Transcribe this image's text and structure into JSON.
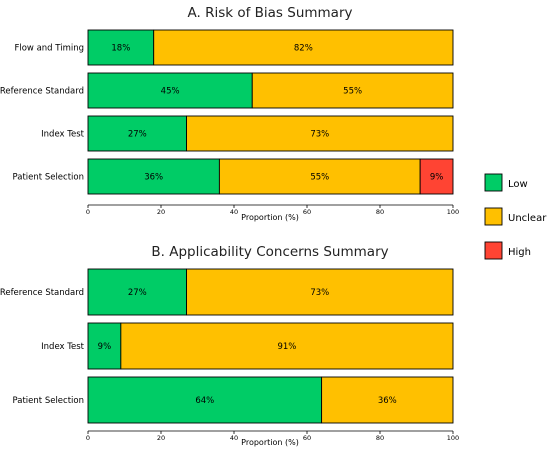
{
  "colors": {
    "Low": "#00cc66",
    "Unclear": "#ffc000",
    "High": "#ff4433"
  },
  "legend": [
    "Low",
    "Unclear",
    "High"
  ],
  "chart_data": [
    {
      "type": "bar",
      "orientation": "horizontal",
      "stacked": true,
      "title": "A. Risk of Bias Summary",
      "xlabel": "Proportion (%)",
      "xlim": [
        0,
        100
      ],
      "xticks": [
        0,
        20,
        40,
        60,
        80,
        100
      ],
      "categories": [
        "Flow and Timing",
        "Reference Standard",
        "Index Test",
        "Patient Selection"
      ],
      "series": [
        {
          "name": "Low",
          "values": [
            18,
            45,
            27,
            36
          ]
        },
        {
          "name": "Unclear",
          "values": [
            82,
            55,
            73,
            55
          ]
        },
        {
          "name": "High",
          "values": [
            0,
            0,
            0,
            9
          ]
        }
      ]
    },
    {
      "type": "bar",
      "orientation": "horizontal",
      "stacked": true,
      "title": "B. Applicability Concerns Summary",
      "xlabel": "Proportion (%)",
      "xlim": [
        0,
        100
      ],
      "xticks": [
        0,
        20,
        40,
        60,
        80,
        100
      ],
      "categories": [
        "Reference Standard",
        "Index Test",
        "Patient Selection"
      ],
      "series": [
        {
          "name": "Low",
          "values": [
            27,
            9,
            64
          ]
        },
        {
          "name": "Unclear",
          "values": [
            73,
            91,
            36
          ]
        },
        {
          "name": "High",
          "values": [
            0,
            0,
            0
          ]
        }
      ]
    }
  ]
}
